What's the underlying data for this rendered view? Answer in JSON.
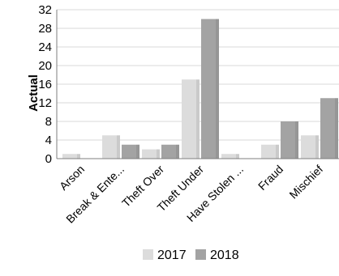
{
  "chart_data": {
    "type": "bar",
    "ylabel": "Actual",
    "xlabel": "",
    "title": "",
    "ylim": [
      0,
      32
    ],
    "yticks": [
      0,
      4,
      8,
      12,
      16,
      20,
      24,
      28,
      32
    ],
    "grid": true,
    "legend_position": "bottom",
    "categories": [
      "Arson",
      "Break & Ente...",
      "Theft Over",
      "Theft Under",
      "Have Stolen ...",
      "Fraud",
      "Mischief"
    ],
    "series": [
      {
        "name": "2017",
        "color": "#dcdcdc",
        "values": [
          1,
          5,
          2,
          17,
          1,
          3,
          5
        ]
      },
      {
        "name": "2018",
        "color": "#a3a3a3",
        "values": [
          0,
          3,
          3,
          30,
          0,
          8,
          13
        ]
      }
    ]
  }
}
